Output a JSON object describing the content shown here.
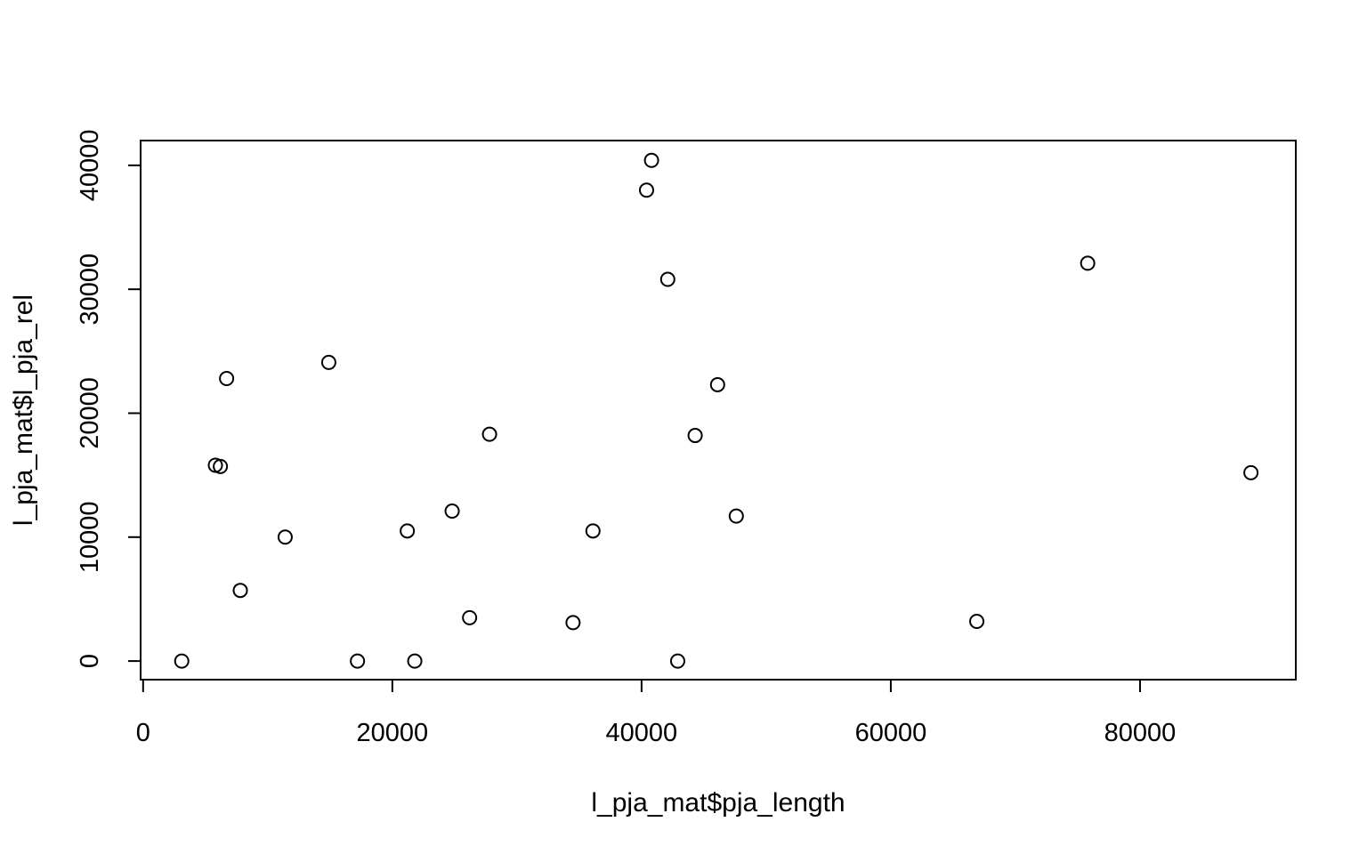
{
  "chart_data": {
    "type": "scatter",
    "title": "",
    "xlabel": "l_pja_mat$pja_length",
    "ylabel": "l_pja_mat$l_pja_rel",
    "xlim": [
      -200,
      92500
    ],
    "ylim": [
      -1500,
      42000
    ],
    "x_ticks": [
      0,
      20000,
      40000,
      60000,
      80000
    ],
    "x_tick_labels": [
      "0",
      "20000",
      "40000",
      "60000",
      "80000"
    ],
    "y_ticks": [
      0,
      10000,
      20000,
      30000,
      40000
    ],
    "y_tick_labels": [
      "0",
      "10000",
      "20000",
      "30000",
      "40000"
    ],
    "grid": false,
    "legend": "none",
    "marker": "open-circle",
    "points": [
      {
        "x": 3100,
        "y": 0
      },
      {
        "x": 5800,
        "y": 15800
      },
      {
        "x": 6200,
        "y": 15700
      },
      {
        "x": 6700,
        "y": 22800
      },
      {
        "x": 7800,
        "y": 5700
      },
      {
        "x": 11400,
        "y": 10000
      },
      {
        "x": 14900,
        "y": 24100
      },
      {
        "x": 17200,
        "y": 0
      },
      {
        "x": 21200,
        "y": 10500
      },
      {
        "x": 21800,
        "y": 0
      },
      {
        "x": 24800,
        "y": 12100
      },
      {
        "x": 26200,
        "y": 3500
      },
      {
        "x": 27800,
        "y": 18300
      },
      {
        "x": 34500,
        "y": 3100
      },
      {
        "x": 36100,
        "y": 10500
      },
      {
        "x": 40400,
        "y": 38000
      },
      {
        "x": 40800,
        "y": 40400
      },
      {
        "x": 42100,
        "y": 30800
      },
      {
        "x": 42900,
        "y": 0
      },
      {
        "x": 44300,
        "y": 18200
      },
      {
        "x": 46100,
        "y": 22300
      },
      {
        "x": 47600,
        "y": 11700
      },
      {
        "x": 66900,
        "y": 3200
      },
      {
        "x": 75800,
        "y": 32100
      },
      {
        "x": 88900,
        "y": 15200
      }
    ]
  }
}
